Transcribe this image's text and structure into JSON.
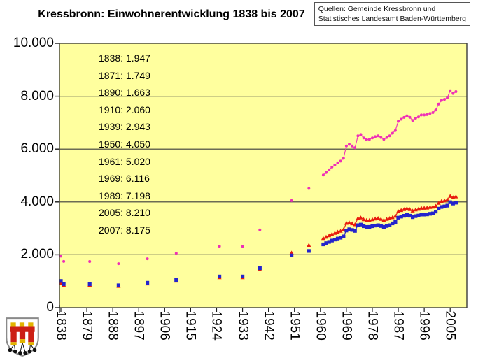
{
  "title": "Kressbronn: Einwohnerentwicklung 1838 bis 2007",
  "source_box": {
    "line1": "Quellen: Gemeinde Kressbronn und",
    "line2": "Statistisches Landesamt Baden-Württemberg"
  },
  "annotations": [
    "1838: 1.947",
    "1871: 1.749",
    "1890: 1.663",
    "1910: 2.060",
    "1939: 2.943",
    "1950: 4.050",
    "1961: 5.020",
    "1969: 6.116",
    "1989: 7.198",
    "2005: 8.210",
    "2007: 8.175"
  ],
  "colors": {
    "page_bg": "#ffffff",
    "plot_bg": "#ffff9e",
    "grid": "#3c3c3c",
    "axis": "#1a1a1a",
    "series_total": "#ee30b6",
    "series_blue_squares": "#2424cc",
    "series_red_triangles": "#e81c0d"
  },
  "chart_data": {
    "type": "line",
    "title": "Kressbronn: Einwohnerentwicklung 1838 bis 2007",
    "xlabel": "",
    "ylabel": "",
    "grid": "horizontal",
    "legend": "none",
    "plot_bg": "#ffff9e",
    "y_axis": {
      "min": 0,
      "max": 10000,
      "step": 2000,
      "tick_values": [
        0,
        2000,
        4000,
        6000,
        8000,
        10000
      ],
      "tick_labels": [
        "0",
        "2.000",
        "4.000",
        "6.000",
        "8.000",
        "10.000"
      ]
    },
    "x_axis": {
      "type": "category",
      "note": "first category is 1838, then one category per year 1871-2007; labels every 9th category",
      "tick_years": [
        1838,
        1879,
        1888,
        1897,
        1906,
        1915,
        1924,
        1933,
        1942,
        1951,
        1960,
        1969,
        1978,
        1987,
        1996,
        2005
      ],
      "tick_labels": [
        "1838",
        "1879",
        "1888",
        "1897",
        "1906",
        "1915",
        "1924",
        "1933",
        "1942",
        "1951",
        "1960",
        "1969",
        "1978",
        "1987",
        "1996",
        "2005"
      ]
    },
    "series": [
      {
        "name": "red-triangles",
        "marker": "triangle",
        "color": "#e81c0d",
        "points": [
          [
            1838,
            937
          ],
          [
            1871,
            858
          ],
          [
            1880,
            856
          ],
          [
            1890,
            816
          ],
          [
            1900,
            908
          ],
          [
            1910,
            1012
          ],
          [
            1925,
            1140
          ],
          [
            1933,
            1140
          ],
          [
            1939,
            1448
          ],
          [
            1950,
            2075
          ],
          [
            1956,
            2365
          ],
          [
            1961,
            2625
          ],
          [
            1962,
            2672
          ],
          [
            1963,
            2727
          ],
          [
            1964,
            2782
          ],
          [
            1965,
            2824
          ],
          [
            1966,
            2866
          ],
          [
            1967,
            2900
          ],
          [
            1968,
            2955
          ],
          [
            1969,
            3199
          ],
          [
            1970,
            3214
          ],
          [
            1971,
            3182
          ],
          [
            1972,
            3146
          ],
          [
            1973,
            3380
          ],
          [
            1974,
            3406
          ],
          [
            1975,
            3338
          ],
          [
            1976,
            3307
          ],
          [
            1977,
            3310
          ],
          [
            1978,
            3338
          ],
          [
            1979,
            3364
          ],
          [
            1980,
            3380
          ],
          [
            1981,
            3349
          ],
          [
            1982,
            3312
          ],
          [
            1983,
            3349
          ],
          [
            1984,
            3380
          ],
          [
            1985,
            3412
          ],
          [
            1986,
            3466
          ],
          [
            1987,
            3645
          ],
          [
            1988,
            3686
          ],
          [
            1989,
            3721
          ],
          [
            1990,
            3753
          ],
          [
            1991,
            3722
          ],
          [
            1992,
            3663
          ],
          [
            1993,
            3707
          ],
          [
            1994,
            3730
          ],
          [
            1995,
            3769
          ],
          [
            1996,
            3769
          ],
          [
            1997,
            3777
          ],
          [
            1998,
            3800
          ],
          [
            1999,
            3815
          ],
          [
            2000,
            3845
          ],
          [
            2001,
            3960
          ],
          [
            2002,
            4030
          ],
          [
            2003,
            4050
          ],
          [
            2004,
            4084
          ],
          [
            2005,
            4220
          ],
          [
            2006,
            4166
          ],
          [
            2007,
            4202
          ]
        ]
      },
      {
        "name": "blue-squares",
        "marker": "square",
        "color": "#2424cc",
        "points": [
          [
            1838,
            1010
          ],
          [
            1871,
            891
          ],
          [
            1880,
            889
          ],
          [
            1890,
            847
          ],
          [
            1900,
            942
          ],
          [
            1910,
            1048
          ],
          [
            1925,
            1180
          ],
          [
            1933,
            1180
          ],
          [
            1939,
            1495
          ],
          [
            1950,
            1975
          ],
          [
            1956,
            2145
          ],
          [
            1961,
            2395
          ],
          [
            1962,
            2438
          ],
          [
            1963,
            2488
          ],
          [
            1964,
            2538
          ],
          [
            1965,
            2576
          ],
          [
            1966,
            2614
          ],
          [
            1967,
            2645
          ],
          [
            1968,
            2695
          ],
          [
            1969,
            2917
          ],
          [
            1970,
            2966
          ],
          [
            1971,
            2938
          ],
          [
            1972,
            2904
          ],
          [
            1973,
            3120
          ],
          [
            1974,
            3144
          ],
          [
            1975,
            3082
          ],
          [
            1976,
            3053
          ],
          [
            1977,
            3055
          ],
          [
            1978,
            3082
          ],
          [
            1979,
            3106
          ],
          [
            1980,
            3120
          ],
          [
            1981,
            3091
          ],
          [
            1982,
            3058
          ],
          [
            1983,
            3091
          ],
          [
            1984,
            3120
          ],
          [
            1985,
            3188
          ],
          [
            1986,
            3239
          ],
          [
            1987,
            3405
          ],
          [
            1988,
            3444
          ],
          [
            1989,
            3477
          ],
          [
            1990,
            3507
          ],
          [
            1991,
            3478
          ],
          [
            1992,
            3422
          ],
          [
            1993,
            3463
          ],
          [
            1994,
            3485
          ],
          [
            1995,
            3521
          ],
          [
            1996,
            3521
          ],
          [
            1997,
            3528
          ],
          [
            1998,
            3550
          ],
          [
            1999,
            3565
          ],
          [
            2000,
            3635
          ],
          [
            2001,
            3745
          ],
          [
            2002,
            3810
          ],
          [
            2003,
            3830
          ],
          [
            2004,
            3861
          ],
          [
            2005,
            3990
          ],
          [
            2006,
            3939
          ],
          [
            2007,
            3973
          ]
        ]
      },
      {
        "name": "magenta-dots-total",
        "marker": "circle",
        "color": "#ee30b6",
        "points": [
          [
            1838,
            1947
          ],
          [
            1871,
            1749
          ],
          [
            1880,
            1745
          ],
          [
            1890,
            1663
          ],
          [
            1900,
            1850
          ],
          [
            1910,
            2060
          ],
          [
            1925,
            2320
          ],
          [
            1933,
            2320
          ],
          [
            1939,
            2943
          ],
          [
            1950,
            4050
          ],
          [
            1956,
            4510
          ],
          [
            1961,
            5020
          ],
          [
            1962,
            5110
          ],
          [
            1963,
            5215
          ],
          [
            1964,
            5320
          ],
          [
            1965,
            5400
          ],
          [
            1966,
            5480
          ],
          [
            1967,
            5545
          ],
          [
            1968,
            5650
          ],
          [
            1969,
            6116
          ],
          [
            1970,
            6180
          ],
          [
            1971,
            6120
          ],
          [
            1972,
            6050
          ],
          [
            1973,
            6500
          ],
          [
            1974,
            6550
          ],
          [
            1975,
            6420
          ],
          [
            1976,
            6360
          ],
          [
            1977,
            6365
          ],
          [
            1978,
            6420
          ],
          [
            1979,
            6470
          ],
          [
            1980,
            6500
          ],
          [
            1981,
            6440
          ],
          [
            1982,
            6370
          ],
          [
            1983,
            6440
          ],
          [
            1984,
            6500
          ],
          [
            1985,
            6600
          ],
          [
            1986,
            6705
          ],
          [
            1987,
            7050
          ],
          [
            1988,
            7130
          ],
          [
            1989,
            7198
          ],
          [
            1990,
            7260
          ],
          [
            1991,
            7200
          ],
          [
            1992,
            7085
          ],
          [
            1993,
            7170
          ],
          [
            1994,
            7215
          ],
          [
            1995,
            7290
          ],
          [
            1996,
            7290
          ],
          [
            1997,
            7305
          ],
          [
            1998,
            7350
          ],
          [
            1999,
            7380
          ],
          [
            2000,
            7480
          ],
          [
            2001,
            7705
          ],
          [
            2002,
            7840
          ],
          [
            2003,
            7880
          ],
          [
            2004,
            7945
          ],
          [
            2005,
            8210
          ],
          [
            2006,
            8105
          ],
          [
            2007,
            8175
          ]
        ]
      }
    ]
  }
}
